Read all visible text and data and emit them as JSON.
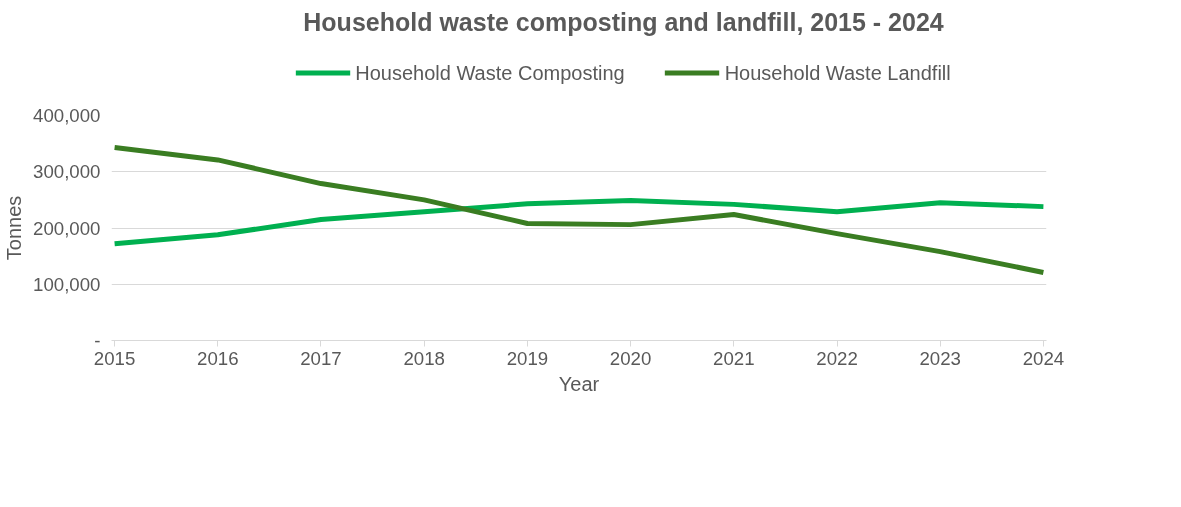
{
  "chart_data": {
    "type": "line",
    "title": "Household waste composting and landfill, 2015 - 2024",
    "xlabel": "Year",
    "ylabel": "Tonnes",
    "categories": [
      "2015",
      "2016",
      "2017",
      "2018",
      "2019",
      "2020",
      "2021",
      "2022",
      "2023",
      "2024"
    ],
    "series": [
      {
        "name": "Household Waste Composting",
        "color": "#00b050",
        "values": [
          172000,
          188000,
          215000,
          229000,
          243000,
          249000,
          242000,
          229000,
          245000,
          238000
        ]
      },
      {
        "name": "Household Waste Landfill",
        "color": "#3a7d22",
        "values": [
          343000,
          321000,
          279000,
          250000,
          208000,
          206000,
          224000,
          190000,
          158000,
          121000
        ]
      }
    ],
    "ylim": [
      0,
      400000
    ],
    "yticks": [
      {
        "value": 0,
        "label": "-"
      },
      {
        "value": 100000,
        "label": "100,000"
      },
      {
        "value": 200000,
        "label": "200,000"
      },
      {
        "value": 300000,
        "label": "300,000"
      },
      {
        "value": 400000,
        "label": "400,000"
      }
    ],
    "grid": "y",
    "legend": "top",
    "marker": "none",
    "line_style": "solid"
  }
}
